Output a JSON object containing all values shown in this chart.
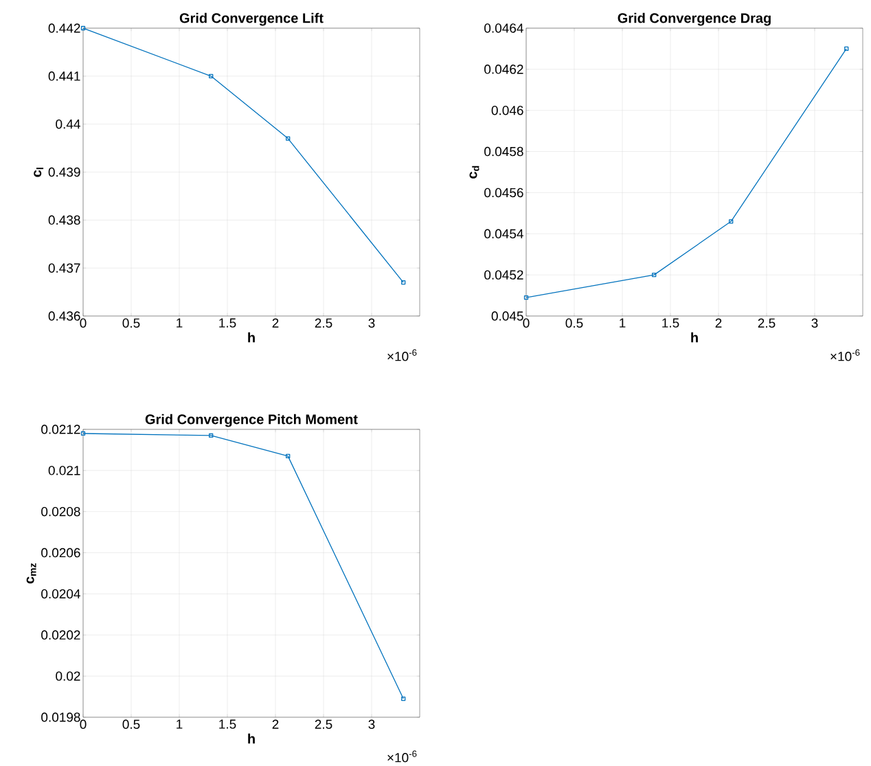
{
  "chart_data": [
    {
      "type": "line",
      "title": "Grid Convergence Lift",
      "xlabel": "h",
      "ylabel": "c$_{l}$",
      "x": [
        0,
        1.33,
        2.13,
        3.33
      ],
      "values": [
        0.442,
        0.441,
        0.4397,
        0.4367
      ],
      "color": "#0072bd",
      "marker": "square",
      "grid": true,
      "xlim": [
        0,
        3.5
      ],
      "ylim": [
        0.436,
        0.442
      ],
      "xticks": [
        0,
        0.5,
        1,
        1.5,
        2,
        2.5,
        3
      ],
      "yticks": [
        0.436,
        0.437,
        0.438,
        0.439,
        0.44,
        0.441,
        0.442
      ],
      "annotations": [
        "×10$^{-6}$"
      ]
    },
    {
      "type": "line",
      "title": "Grid Convergence Drag",
      "xlabel": "h",
      "ylabel": "c$_{d}$",
      "x": [
        0,
        1.33,
        2.13,
        3.33
      ],
      "values": [
        0.04509,
        0.0452,
        0.04546,
        0.0463
      ],
      "color": "#0072bd",
      "marker": "square",
      "grid": true,
      "xlim": [
        0,
        3.5
      ],
      "ylim": [
        0.045,
        0.0464
      ],
      "xticks": [
        0,
        0.5,
        1,
        1.5,
        2,
        2.5,
        3
      ],
      "yticks": [
        0.045,
        0.0452,
        0.0454,
        0.0456,
        0.0458,
        0.046,
        0.0462,
        0.0464
      ],
      "annotations": [
        "×10$^{-6}$"
      ]
    },
    {
      "type": "line",
      "title": "Grid Convergence Pitch Moment",
      "xlabel": "h",
      "ylabel": "c$_{mz}$",
      "x": [
        0,
        1.33,
        2.13,
        3.33
      ],
      "values": [
        0.02118,
        0.02117,
        0.02107,
        0.01989
      ],
      "color": "#0072bd",
      "marker": "square",
      "grid": true,
      "xlim": [
        0,
        3.5
      ],
      "ylim": [
        0.0198,
        0.0212
      ],
      "xticks": [
        0,
        0.5,
        1,
        1.5,
        2,
        2.5,
        3
      ],
      "yticks": [
        0.0198,
        0.02,
        0.0202,
        0.0204,
        0.0206,
        0.0208,
        0.021,
        0.0212
      ],
      "annotations": [
        "×10$^{-6}$"
      ]
    }
  ]
}
